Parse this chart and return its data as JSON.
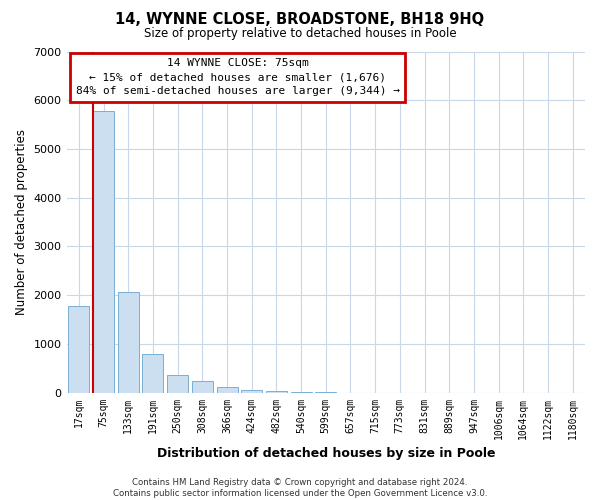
{
  "title": "14, WYNNE CLOSE, BROADSTONE, BH18 9HQ",
  "subtitle": "Size of property relative to detached houses in Poole",
  "xlabel": "Distribution of detached houses by size in Poole",
  "ylabel": "Number of detached properties",
  "categories": [
    "17sqm",
    "75sqm",
    "133sqm",
    "191sqm",
    "250sqm",
    "308sqm",
    "366sqm",
    "424sqm",
    "482sqm",
    "540sqm",
    "599sqm",
    "657sqm",
    "715sqm",
    "773sqm",
    "831sqm",
    "889sqm",
    "947sqm",
    "1006sqm",
    "1064sqm",
    "1122sqm",
    "1180sqm"
  ],
  "values": [
    1780,
    5780,
    2060,
    800,
    370,
    230,
    120,
    65,
    30,
    18,
    8,
    0,
    0,
    0,
    0,
    0,
    0,
    0,
    0,
    0,
    0
  ],
  "bar_color": "#ccdff0",
  "bar_edge_color": "#7aafd4",
  "highlight_bar_index": 1,
  "highlight_line_color": "#cc0000",
  "ylim": [
    0,
    7000
  ],
  "yticks": [
    0,
    1000,
    2000,
    3000,
    4000,
    5000,
    6000,
    7000
  ],
  "annotation_title": "14 WYNNE CLOSE: 75sqm",
  "annotation_line1": "← 15% of detached houses are smaller (1,676)",
  "annotation_line2": "84% of semi-detached houses are larger (9,344) →",
  "annotation_box_color": "#ffffff",
  "annotation_box_edge_color": "#cc0000",
  "footer_line1": "Contains HM Land Registry data © Crown copyright and database right 2024.",
  "footer_line2": "Contains public sector information licensed under the Open Government Licence v3.0.",
  "background_color": "#ffffff",
  "grid_color": "#c8d8e8"
}
